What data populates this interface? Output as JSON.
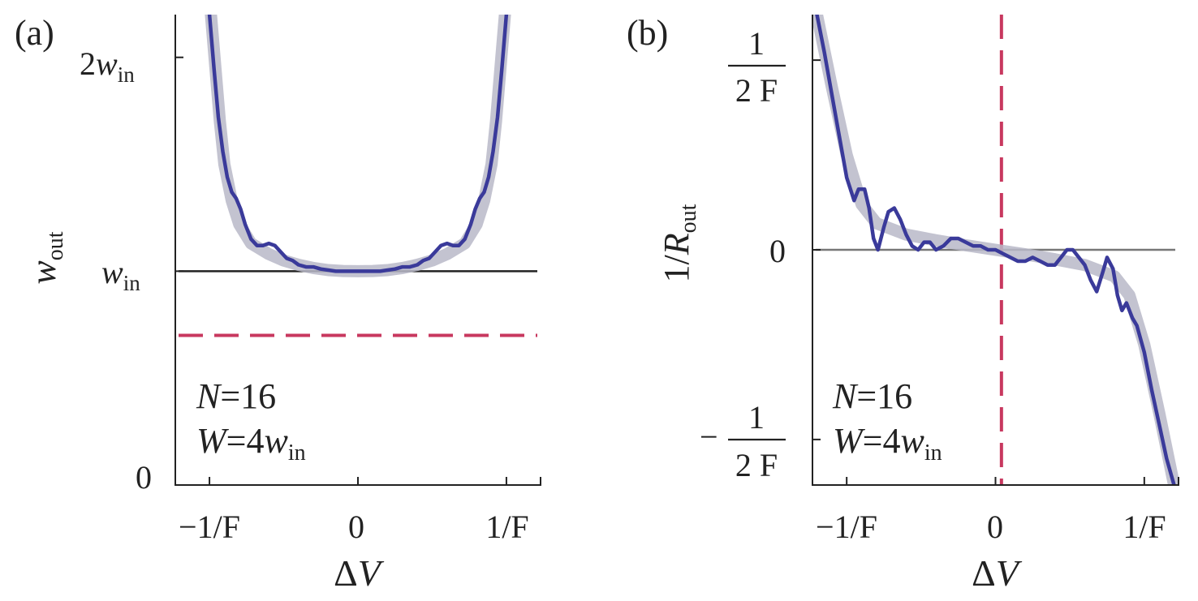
{
  "chart_data": [
    {
      "type": "line",
      "panel_label": "(a)",
      "xlabel_greek": "Δ",
      "xlabel_var": "V",
      "ylabel_var": "w",
      "ylabel_sub": "out",
      "x_ticks": [
        {
          "value": -1,
          "label": "−1/F"
        },
        {
          "value": 0,
          "label": "0"
        },
        {
          "value": 1,
          "label": "1/F"
        }
      ],
      "y_ticks": [
        {
          "value": 0,
          "label": "0"
        },
        {
          "value": 1,
          "label_var": "w",
          "label_sub": "in"
        },
        {
          "value": 2,
          "label_coef": "2",
          "label_var": "w",
          "label_sub": "in"
        }
      ],
      "xlim": [
        -1.23,
        1.23
      ],
      "ylim": [
        0,
        2.2
      ],
      "annotation": {
        "line1_var": "N",
        "line1_rest": "=16",
        "line2_var": "W",
        "line2_mid": "=4",
        "line2_var2": "w",
        "line2_sub": "in"
      },
      "reference_lines": [
        {
          "orientation": "horizontal",
          "value": 1.0,
          "style": "solid",
          "color": "#222222"
        },
        {
          "orientation": "horizontal",
          "value": 0.7,
          "style": "dashed",
          "color": "#c8385f"
        }
      ],
      "series": [
        {
          "style": "thick-gray",
          "color": "#b9b8c8",
          "x": [
            -0.99,
            -0.96,
            -0.93,
            -0.9,
            -0.85,
            -0.8,
            -0.72,
            -0.6,
            -0.5,
            -0.4,
            -0.3,
            -0.2,
            -0.1,
            0.0,
            0.1,
            0.2,
            0.3,
            0.4,
            0.5,
            0.6,
            0.72,
            0.8,
            0.85,
            0.9,
            0.93,
            0.96,
            0.99
          ],
          "y": [
            2.2,
            1.95,
            1.7,
            1.5,
            1.33,
            1.22,
            1.13,
            1.08,
            1.05,
            1.03,
            1.015,
            1.005,
            1.001,
            1.0,
            1.001,
            1.005,
            1.015,
            1.03,
            1.05,
            1.08,
            1.13,
            1.22,
            1.33,
            1.5,
            1.7,
            1.95,
            2.2
          ]
        },
        {
          "style": "solid",
          "color": "#3a3a9a",
          "x": [
            -1.0,
            -0.97,
            -0.94,
            -0.91,
            -0.88,
            -0.85,
            -0.82,
            -0.79,
            -0.76,
            -0.72,
            -0.68,
            -0.64,
            -0.6,
            -0.56,
            -0.52,
            -0.48,
            -0.44,
            -0.4,
            -0.35,
            -0.3,
            -0.25,
            -0.2,
            -0.15,
            -0.1,
            -0.05,
            0.0,
            0.05,
            0.1,
            0.15,
            0.2,
            0.25,
            0.3,
            0.35,
            0.4,
            0.44,
            0.48,
            0.52,
            0.56,
            0.6,
            0.64,
            0.68,
            0.72,
            0.76,
            0.79,
            0.82,
            0.85,
            0.88,
            0.91,
            0.94,
            0.97,
            1.0
          ],
          "y": [
            2.2,
            1.95,
            1.72,
            1.56,
            1.44,
            1.37,
            1.34,
            1.29,
            1.22,
            1.15,
            1.12,
            1.12,
            1.13,
            1.12,
            1.09,
            1.06,
            1.05,
            1.03,
            1.02,
            1.02,
            1.01,
            1.005,
            1.0,
            1.0,
            1.0,
            1.0,
            1.0,
            1.0,
            1.0,
            1.005,
            1.01,
            1.02,
            1.02,
            1.03,
            1.05,
            1.06,
            1.09,
            1.12,
            1.13,
            1.12,
            1.12,
            1.15,
            1.22,
            1.29,
            1.34,
            1.37,
            1.44,
            1.56,
            1.72,
            1.95,
            2.2
          ]
        }
      ]
    },
    {
      "type": "line",
      "panel_label": "(b)",
      "xlabel_greek": "Δ",
      "xlabel_var": "V",
      "ylabel_pre": "1/",
      "ylabel_var": "R",
      "ylabel_sub": "out",
      "x_ticks": [
        {
          "value": -1,
          "label": "−1/F"
        },
        {
          "value": 0,
          "label": "0"
        },
        {
          "value": 1,
          "label": "1/F"
        }
      ],
      "y_ticks": [
        {
          "value": 0.5,
          "label_num": "1",
          "label_den": "2 F"
        },
        {
          "value": 0,
          "label": "0"
        },
        {
          "value": -0.5,
          "label_sign": "−",
          "label_num": "1",
          "label_den": "2 F"
        }
      ],
      "xlim": [
        -1.23,
        1.23
      ],
      "ylim": [
        -0.62,
        0.62
      ],
      "annotation": {
        "line1_var": "N",
        "line1_rest": "=16",
        "line2_var": "W",
        "line2_mid": "=4",
        "line2_var2": "w",
        "line2_sub": "in"
      },
      "reference_lines": [
        {
          "orientation": "horizontal",
          "value": 0,
          "style": "solid",
          "color": "#777777"
        },
        {
          "orientation": "vertical",
          "value": 0.04,
          "style": "dashed",
          "color": "#c8385f"
        }
      ],
      "series": [
        {
          "style": "thick-gray",
          "color": "#b9b8c8",
          "x": [
            -1.2,
            -1.1,
            -1.0,
            -0.9,
            -0.8,
            -0.6,
            -0.4,
            -0.2,
            0.0,
            0.2,
            0.4,
            0.6,
            0.8,
            0.9,
            1.0,
            1.1,
            1.2
          ],
          "y": [
            0.62,
            0.43,
            0.25,
            0.12,
            0.07,
            0.04,
            0.025,
            0.012,
            0.0,
            -0.012,
            -0.025,
            -0.04,
            -0.07,
            -0.12,
            -0.25,
            -0.43,
            -0.62
          ]
        },
        {
          "style": "solid",
          "color": "#3a3a9a",
          "x": [
            -1.2,
            -1.15,
            -1.1,
            -1.05,
            -1.0,
            -0.95,
            -0.92,
            -0.88,
            -0.85,
            -0.82,
            -0.79,
            -0.75,
            -0.72,
            -0.68,
            -0.64,
            -0.6,
            -0.56,
            -0.52,
            -0.48,
            -0.44,
            -0.4,
            -0.35,
            -0.3,
            -0.25,
            -0.2,
            -0.15,
            -0.1,
            -0.05,
            0.0,
            0.05,
            0.1,
            0.15,
            0.2,
            0.25,
            0.3,
            0.35,
            0.4,
            0.44,
            0.48,
            0.52,
            0.56,
            0.6,
            0.64,
            0.68,
            0.72,
            0.75,
            0.79,
            0.82,
            0.85,
            0.88,
            0.92,
            0.95,
            1.0,
            1.05,
            1.1,
            1.15,
            1.2
          ],
          "y": [
            0.62,
            0.52,
            0.41,
            0.3,
            0.19,
            0.13,
            0.16,
            0.16,
            0.11,
            0.03,
            0.0,
            0.06,
            0.1,
            0.11,
            0.08,
            0.04,
            0.01,
            0.0,
            0.02,
            0.02,
            0.0,
            0.01,
            0.03,
            0.03,
            0.02,
            0.01,
            0.01,
            0.0,
            0.0,
            -0.01,
            -0.02,
            -0.03,
            -0.03,
            -0.02,
            -0.03,
            -0.04,
            -0.04,
            -0.02,
            0.0,
            0.0,
            -0.02,
            -0.04,
            -0.08,
            -0.11,
            -0.06,
            -0.02,
            -0.05,
            -0.12,
            -0.16,
            -0.14,
            -0.18,
            -0.2,
            -0.27,
            -0.37,
            -0.46,
            -0.55,
            -0.62
          ]
        }
      ]
    }
  ]
}
